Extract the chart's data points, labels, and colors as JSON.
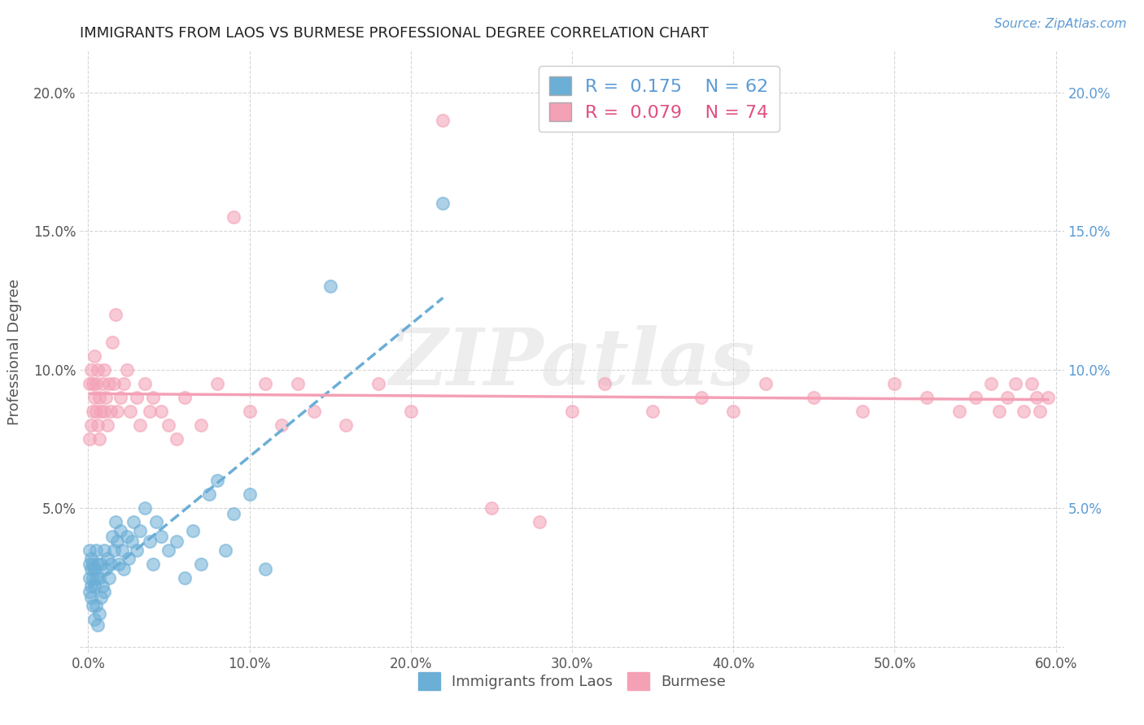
{
  "title": "IMMIGRANTS FROM LAOS VS BURMESE PROFESSIONAL DEGREE CORRELATION CHART",
  "source": "Source: ZipAtlas.com",
  "ylabel": "Professional Degree",
  "xlim": [
    -0.005,
    0.605
  ],
  "ylim": [
    -0.002,
    0.215
  ],
  "xticks": [
    0.0,
    0.1,
    0.2,
    0.3,
    0.4,
    0.5,
    0.6
  ],
  "xticklabels": [
    "0.0%",
    "10.0%",
    "20.0%",
    "30.0%",
    "40.0%",
    "50.0%",
    "60.0%"
  ],
  "yticks": [
    0.0,
    0.05,
    0.1,
    0.15,
    0.2
  ],
  "yticklabels_left": [
    "",
    "5.0%",
    "10.0%",
    "15.0%",
    "20.0%"
  ],
  "yticklabels_right": [
    "",
    "5.0%",
    "10.0%",
    "15.0%",
    "20.0%"
  ],
  "laos_color": "#6baed6",
  "burmese_color": "#f4a0b5",
  "laos_R": 0.175,
  "laos_N": 62,
  "burmese_R": 0.079,
  "burmese_N": 74,
  "watermark": "ZIPatlas",
  "background_color": "#ffffff",
  "grid_color": "#cccccc",
  "laos_x": [
    0.001,
    0.001,
    0.001,
    0.001,
    0.002,
    0.002,
    0.002,
    0.002,
    0.003,
    0.003,
    0.003,
    0.004,
    0.004,
    0.004,
    0.005,
    0.005,
    0.005,
    0.006,
    0.006,
    0.007,
    0.007,
    0.008,
    0.008,
    0.009,
    0.01,
    0.01,
    0.011,
    0.012,
    0.013,
    0.014,
    0.015,
    0.016,
    0.017,
    0.018,
    0.019,
    0.02,
    0.021,
    0.022,
    0.024,
    0.025,
    0.027,
    0.028,
    0.03,
    0.032,
    0.035,
    0.038,
    0.04,
    0.042,
    0.045,
    0.05,
    0.055,
    0.06,
    0.065,
    0.07,
    0.075,
    0.08,
    0.085,
    0.09,
    0.1,
    0.11,
    0.15,
    0.22
  ],
  "laos_y": [
    0.035,
    0.03,
    0.025,
    0.02,
    0.032,
    0.028,
    0.022,
    0.018,
    0.03,
    0.025,
    0.015,
    0.028,
    0.022,
    0.01,
    0.035,
    0.025,
    0.015,
    0.03,
    0.008,
    0.025,
    0.012,
    0.03,
    0.018,
    0.022,
    0.035,
    0.02,
    0.028,
    0.032,
    0.025,
    0.03,
    0.04,
    0.035,
    0.045,
    0.038,
    0.03,
    0.042,
    0.035,
    0.028,
    0.04,
    0.032,
    0.038,
    0.045,
    0.035,
    0.042,
    0.05,
    0.038,
    0.03,
    0.045,
    0.04,
    0.035,
    0.038,
    0.025,
    0.042,
    0.03,
    0.055,
    0.06,
    0.035,
    0.048,
    0.055,
    0.028,
    0.13,
    0.16
  ],
  "burmese_x": [
    0.001,
    0.001,
    0.002,
    0.002,
    0.003,
    0.003,
    0.004,
    0.004,
    0.005,
    0.005,
    0.006,
    0.006,
    0.007,
    0.007,
    0.008,
    0.009,
    0.01,
    0.01,
    0.011,
    0.012,
    0.013,
    0.014,
    0.015,
    0.016,
    0.017,
    0.018,
    0.02,
    0.022,
    0.024,
    0.026,
    0.03,
    0.032,
    0.035,
    0.038,
    0.04,
    0.045,
    0.05,
    0.055,
    0.06,
    0.07,
    0.08,
    0.09,
    0.1,
    0.11,
    0.12,
    0.13,
    0.14,
    0.16,
    0.18,
    0.2,
    0.22,
    0.25,
    0.28,
    0.3,
    0.32,
    0.35,
    0.38,
    0.4,
    0.42,
    0.45,
    0.48,
    0.5,
    0.52,
    0.54,
    0.55,
    0.56,
    0.565,
    0.57,
    0.575,
    0.58,
    0.585,
    0.588,
    0.59,
    0.595
  ],
  "burmese_y": [
    0.075,
    0.095,
    0.08,
    0.1,
    0.085,
    0.095,
    0.09,
    0.105,
    0.085,
    0.095,
    0.08,
    0.1,
    0.09,
    0.075,
    0.085,
    0.095,
    0.085,
    0.1,
    0.09,
    0.08,
    0.095,
    0.085,
    0.11,
    0.095,
    0.12,
    0.085,
    0.09,
    0.095,
    0.1,
    0.085,
    0.09,
    0.08,
    0.095,
    0.085,
    0.09,
    0.085,
    0.08,
    0.075,
    0.09,
    0.08,
    0.095,
    0.155,
    0.085,
    0.095,
    0.08,
    0.095,
    0.085,
    0.08,
    0.095,
    0.085,
    0.19,
    0.05,
    0.045,
    0.085,
    0.095,
    0.085,
    0.09,
    0.085,
    0.095,
    0.09,
    0.085,
    0.095,
    0.09,
    0.085,
    0.09,
    0.095,
    0.085,
    0.09,
    0.095,
    0.085,
    0.095,
    0.09,
    0.085,
    0.09
  ]
}
